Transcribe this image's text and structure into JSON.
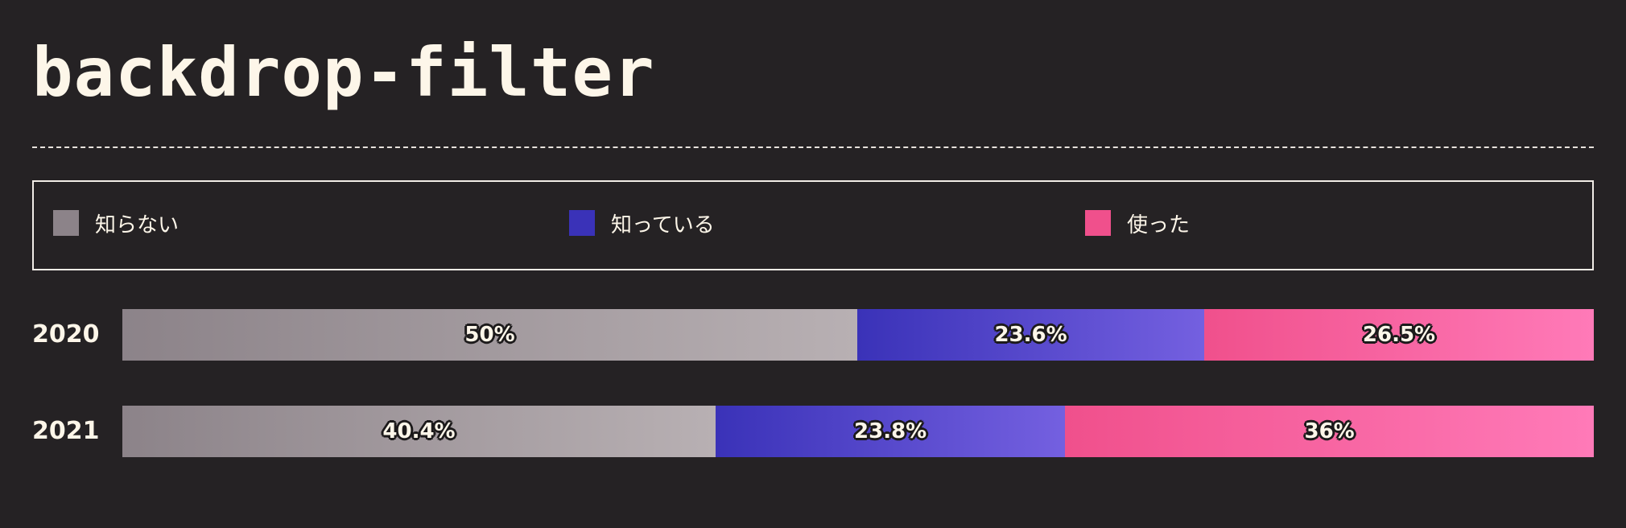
{
  "header": {
    "title": "backdrop-filter"
  },
  "legend": {
    "items": [
      {
        "label": "知らない",
        "color": "#8c8389"
      },
      {
        "label": "知っている",
        "color": "#3a32b8"
      },
      {
        "label": "使った",
        "color": "#f0508c"
      }
    ]
  },
  "chart_data": {
    "type": "bar",
    "orientation": "horizontal",
    "stacked": true,
    "categories": [
      "2020",
      "2021"
    ],
    "series": [
      {
        "name": "知らない",
        "values": [
          50,
          40.4
        ],
        "labels": [
          "50%",
          "40.4%"
        ],
        "color_start": "#8c8389",
        "color_end": "#b8b0b3"
      },
      {
        "name": "知っている",
        "values": [
          23.6,
          23.8
        ],
        "labels": [
          "23.6%",
          "23.8%"
        ],
        "color_start": "#3a32b8",
        "color_end": "#7460e0"
      },
      {
        "name": "使った",
        "values": [
          26.5,
          36
        ],
        "labels": [
          "26.5%",
          "36%"
        ],
        "color_start": "#f0508c",
        "color_end": "#ff7ab8"
      }
    ],
    "unit": "%",
    "xlim": [
      0,
      100
    ],
    "legend_position": "top",
    "grid": false
  }
}
